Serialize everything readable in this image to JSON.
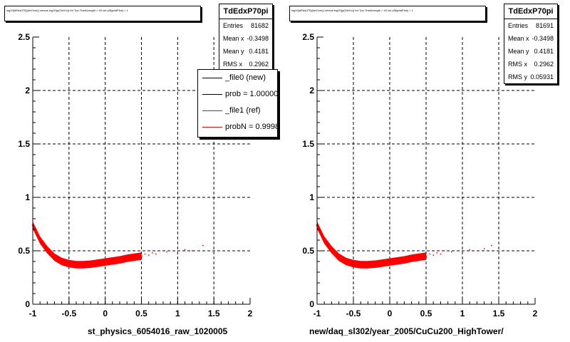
{
  "colors": {
    "data": "#ff0000",
    "ref_line": "#ff0000",
    "new_line": "#000000",
    "grid": "#000000"
  },
  "panels": [
    {
      "title": "log10(dEdx(I70)(keV/cm)) versus log10(p(GeV/c)) for Tpc.TrackLength > 40 cm pSigmaPion| < 1",
      "stats": {
        "name": "TdEdxP70pi",
        "rows": [
          {
            "label": "Entries",
            "value": "81682"
          },
          {
            "label": "Mean x",
            "value": "-0.3498"
          },
          {
            "label": "Mean y",
            "value": "0.4181"
          },
          {
            "label": "RMS x",
            "value": "0.2962"
          }
        ]
      },
      "legend": [
        {
          "label": "_file0 (new)",
          "color": "#000000"
        },
        {
          "label": "prob = 1.000000",
          "color": "#000000"
        },
        {
          "label": "_file1 (ref)",
          "color": "#ff0000"
        },
        {
          "label": "probN = 0.99984",
          "color": "#ff0000"
        }
      ],
      "footer": "st_physics_6054016_raw_1020005"
    },
    {
      "title": "log10(dEdx(I70)(keV/cm)) versus log10(p(GeV/c)) for Tpc.TrackLength > 40 cm pSigmaPion| < 1",
      "stats": {
        "name": "TdEdxP70pi",
        "rows": [
          {
            "label": "Entries",
            "value": "81691"
          },
          {
            "label": "Mean x",
            "value": "-0.3498"
          },
          {
            "label": "Mean y",
            "value": "0.4181"
          },
          {
            "label": "RMS x",
            "value": "0.2962"
          },
          {
            "label": "RMS y",
            "value": "0.05931"
          }
        ]
      },
      "footer": "new/daq_sl302/year_2005/CuCu200_HighTower/"
    }
  ],
  "chart_data": [
    {
      "type": "scatter",
      "title": "log10(dEdx(I70)(keV/cm)) versus log10(p(GeV/c)) for Tpc.TrackLength > 40 cm pSigmaPion| < 1",
      "xlim": [
        -1,
        2
      ],
      "ylim": [
        0,
        2.5
      ],
      "grid": true,
      "x_ticks": [
        "-1",
        "-0.5",
        "0",
        "0.5",
        "1",
        "1.5",
        "2"
      ],
      "y_ticks": [
        "0",
        "0.5",
        "1",
        "1.5",
        "2",
        "2.5"
      ],
      "band": [
        [
          -1.0,
          0.74
        ],
        [
          -0.9,
          0.6
        ],
        [
          -0.8,
          0.51
        ],
        [
          -0.7,
          0.44
        ],
        [
          -0.6,
          0.4
        ],
        [
          -0.5,
          0.38
        ],
        [
          -0.4,
          0.37
        ],
        [
          -0.3,
          0.37
        ],
        [
          -0.2,
          0.375
        ],
        [
          -0.1,
          0.385
        ],
        [
          0.0,
          0.395
        ],
        [
          0.1,
          0.405
        ],
        [
          0.2,
          0.415
        ],
        [
          0.3,
          0.43
        ],
        [
          0.4,
          0.44
        ],
        [
          0.5,
          0.45
        ]
      ],
      "scatter": [
        [
          0.55,
          0.47
        ],
        [
          0.6,
          0.46
        ],
        [
          0.65,
          0.48
        ],
        [
          0.7,
          0.47
        ],
        [
          0.75,
          0.5
        ],
        [
          0.85,
          0.49
        ],
        [
          0.95,
          0.5
        ],
        [
          1.1,
          0.51
        ],
        [
          1.2,
          0.5
        ],
        [
          1.35,
          0.55
        ]
      ]
    },
    {
      "type": "scatter",
      "title": "log10(dEdx(I70)(keV/cm)) versus log10(p(GeV/c)) for Tpc.TrackLength > 40 cm pSigmaPion| < 1",
      "xlim": [
        -1,
        2
      ],
      "ylim": [
        0,
        2.5
      ],
      "grid": true,
      "x_ticks": [
        "-1",
        "-0.5",
        "0",
        "0.5",
        "1",
        "1.5",
        "2"
      ],
      "y_ticks": [
        "0",
        "0.5",
        "1",
        "1.5",
        "2",
        "2.5"
      ],
      "band": [
        [
          -1.0,
          0.74
        ],
        [
          -0.9,
          0.6
        ],
        [
          -0.8,
          0.51
        ],
        [
          -0.7,
          0.44
        ],
        [
          -0.6,
          0.4
        ],
        [
          -0.5,
          0.38
        ],
        [
          -0.4,
          0.37
        ],
        [
          -0.3,
          0.37
        ],
        [
          -0.2,
          0.375
        ],
        [
          -0.1,
          0.385
        ],
        [
          0.0,
          0.395
        ],
        [
          0.1,
          0.405
        ],
        [
          0.2,
          0.415
        ],
        [
          0.3,
          0.43
        ],
        [
          0.4,
          0.44
        ],
        [
          0.5,
          0.45
        ]
      ],
      "scatter": [
        [
          0.55,
          0.47
        ],
        [
          0.6,
          0.46
        ],
        [
          0.65,
          0.48
        ],
        [
          0.7,
          0.47
        ],
        [
          0.75,
          0.5
        ],
        [
          0.85,
          0.49
        ],
        [
          0.95,
          0.5
        ],
        [
          1.1,
          0.51
        ],
        [
          1.3,
          0.52
        ],
        [
          1.4,
          0.55
        ]
      ]
    }
  ]
}
